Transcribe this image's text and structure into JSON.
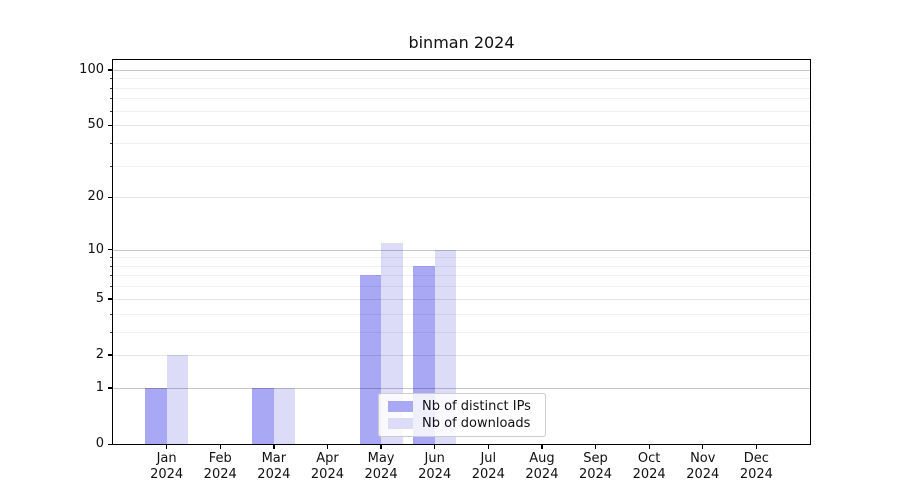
{
  "title": "binman 2024",
  "chart_data": {
    "type": "bar",
    "title": "binman 2024",
    "categories": [
      "Jan 2024",
      "Feb 2024",
      "Mar 2024",
      "Apr 2024",
      "May 2024",
      "Jun 2024",
      "Jul 2024",
      "Aug 2024",
      "Sep 2024",
      "Oct 2024",
      "Nov 2024",
      "Dec 2024"
    ],
    "series": [
      {
        "name": "Nb of distinct IPs",
        "color": "#a8a8f5",
        "values": [
          1,
          0,
          1,
          0,
          7,
          8,
          0,
          0,
          0,
          0,
          0,
          0
        ]
      },
      {
        "name": "Nb of downloads",
        "color": "#dcdcf9",
        "values": [
          2,
          0,
          1,
          0,
          11,
          10,
          0,
          0,
          0,
          0,
          0,
          0
        ]
      }
    ],
    "xlabel": "",
    "ylabel": "",
    "y_scale": "log1p",
    "ylim": [
      0,
      113
    ],
    "y_major_ticks": [
      0,
      1,
      2,
      5,
      10,
      20,
      50,
      100
    ],
    "y_emphasized_gridlines": [
      1,
      10,
      100
    ],
    "y_minor_gridlines": [
      3,
      4,
      6,
      7,
      8,
      9,
      30,
      40,
      60,
      70,
      80,
      90
    ],
    "grid": true,
    "legend_position": "lower center"
  },
  "colors": {
    "grid_major_strong": "rgba(0,0,0,0.225)",
    "grid_major_light": "rgba(0,0,0,0.105)",
    "grid_minor": "rgba(0,0,0,0.055)",
    "axis": "#000000",
    "text": "#111111"
  }
}
